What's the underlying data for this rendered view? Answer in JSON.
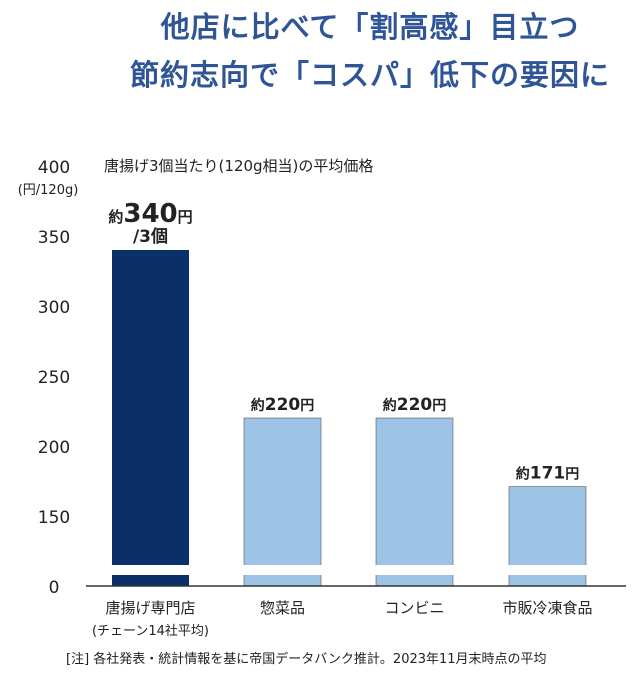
{
  "title_lines": [
    "他店に比べて「割高感」目立つ",
    "節約志向で「コスパ」低下の要因に"
  ],
  "note": "[注] 各社発表・統計情報を基に帝国データバンク推計。2023年11月末時点の平均",
  "colors": {
    "title": "#2f5597",
    "highlight_bar": "#0b3068",
    "bar": "#9dc3e6"
  },
  "chart_data": {
    "type": "bar",
    "title": "唐揚げ3個当たり(120g相当)の平均価格",
    "ylabel": "(円/120g)",
    "y_ticks": [
      "0",
      "150",
      "200",
      "250",
      "300",
      "350",
      "400"
    ],
    "ylim": [
      0,
      400
    ],
    "axis_break": [
      0,
      150
    ],
    "grid": false,
    "categories": [
      "唐揚げ専門店",
      "惣菜品",
      "コンビニ",
      "市販冷凍食品"
    ],
    "category_sublabels": [
      "(チェーン14社平均)",
      "",
      "",
      ""
    ],
    "values": [
      340,
      220,
      220,
      171
    ],
    "data_labels": [
      {
        "prefix": "約",
        "value": "340",
        "unit": "円",
        "extra": "/3個"
      },
      {
        "prefix": "約",
        "value": "220",
        "unit": "円",
        "extra": ""
      },
      {
        "prefix": "約",
        "value": "220",
        "unit": "円",
        "extra": ""
      },
      {
        "prefix": "約",
        "value": "171",
        "unit": "円",
        "extra": ""
      }
    ]
  }
}
